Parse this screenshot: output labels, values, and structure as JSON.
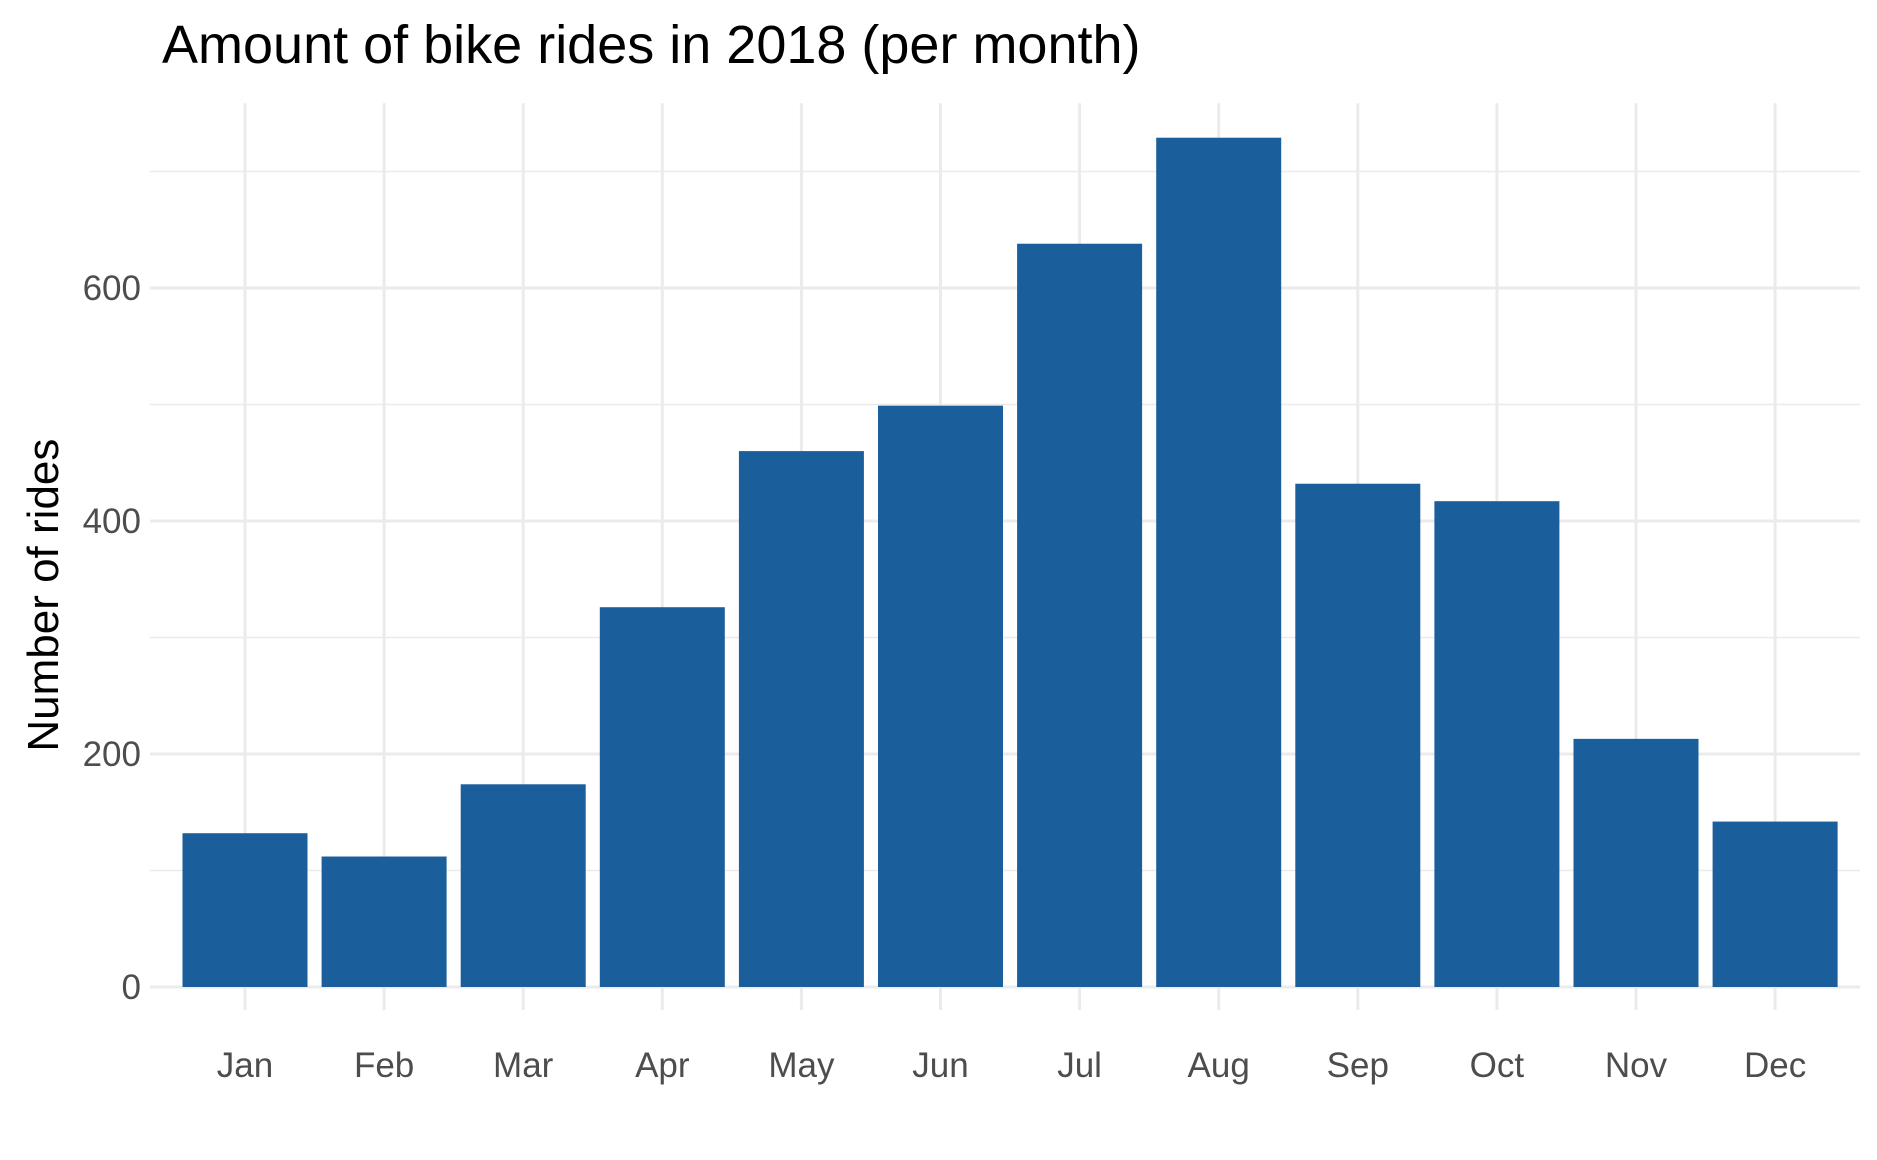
{
  "chart_data": {
    "type": "bar",
    "title": "Amount of bike rides in 2018 (per month)",
    "xlabel": "",
    "ylabel": "Number of rides",
    "categories": [
      "Jan",
      "Feb",
      "Mar",
      "Apr",
      "May",
      "Jun",
      "Jul",
      "Aug",
      "Sep",
      "Oct",
      "Nov",
      "Dec"
    ],
    "values": [
      132,
      112,
      174,
      326,
      460,
      499,
      638,
      729,
      432,
      417,
      213,
      142
    ],
    "ylim": [
      0,
      750
    ],
    "yticks": [
      0,
      200,
      400,
      600
    ],
    "ytick_labels": [
      "0",
      "200",
      "400",
      "600"
    ],
    "grid": true,
    "bar_color": "#1a5e9b",
    "grid_color": "#ebebeb"
  }
}
